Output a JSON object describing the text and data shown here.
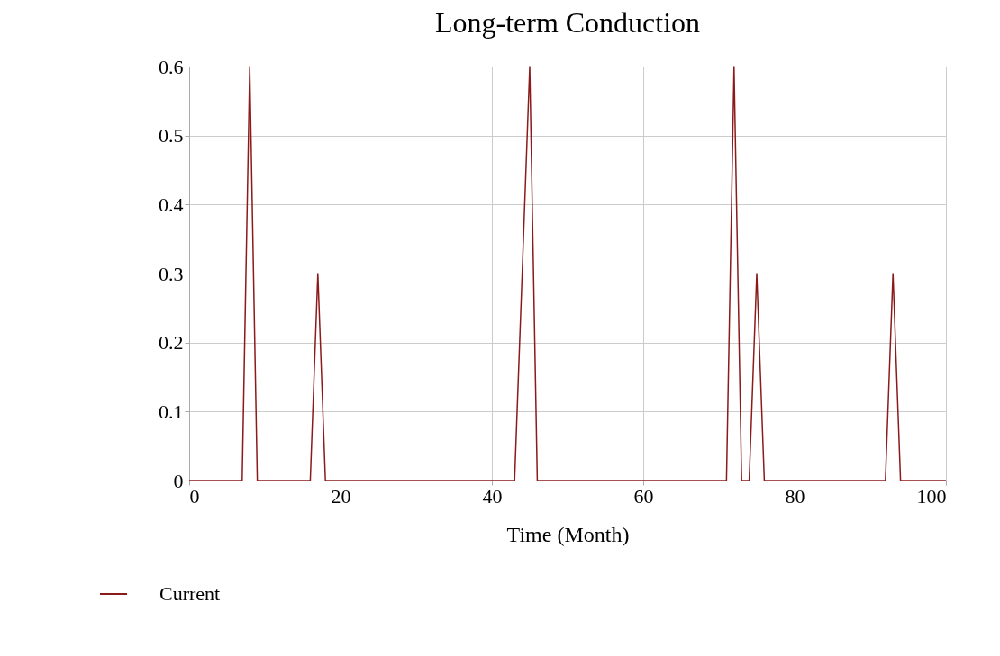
{
  "chart_data": {
    "type": "line",
    "title": "Long-term Conduction",
    "xlabel": "Time (Month)",
    "x": [
      0,
      7,
      8,
      9,
      16,
      17,
      18,
      43,
      44,
      45,
      46,
      71,
      72,
      73,
      74,
      75,
      76,
      92,
      93,
      94,
      100
    ],
    "series": [
      {
        "name": "Current",
        "color": "#8b1a1a",
        "values": [
          0,
          0,
          0.6,
          0,
          0,
          0.3,
          0,
          0,
          0.3,
          0.6,
          0,
          0,
          0.6,
          0,
          0,
          0.3,
          0,
          0,
          0.3,
          0,
          0
        ]
      }
    ],
    "xlim": [
      0,
      100
    ],
    "xticks": [
      0,
      20,
      40,
      60,
      80,
      100
    ],
    "ylim": [
      0,
      0.6
    ],
    "yticks": [
      0,
      0.1,
      0.2,
      0.3,
      0.4,
      0.5,
      0.6
    ],
    "grid": true,
    "legend": "bottom left",
    "marker": "none",
    "line_style": "solid"
  }
}
